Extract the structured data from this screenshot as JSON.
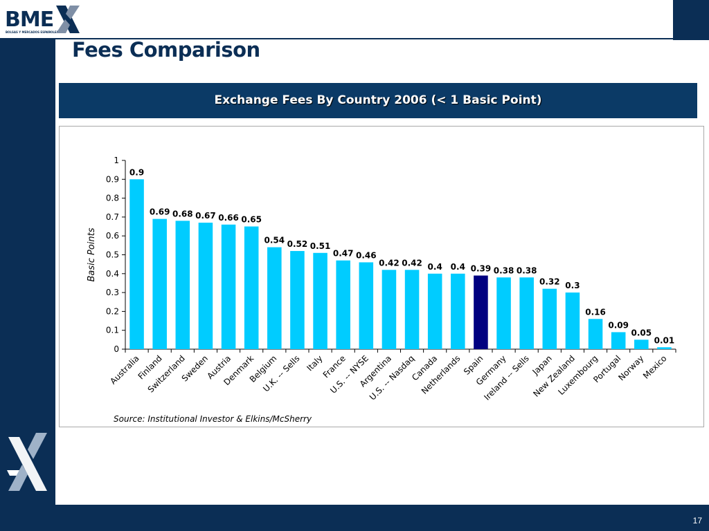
{
  "logo": {
    "wordmark": "BME",
    "tagline": "BOLSAS Y MERCADOS ESPAÑOLES"
  },
  "slide": {
    "title": "Fees Comparison",
    "page_number": "17"
  },
  "colors": {
    "navy": "#0b2e55",
    "banner": "#0b3a66",
    "bar": "#00ccff",
    "highlight_bar": "#000080"
  },
  "chart_data": {
    "type": "bar",
    "title": "Exchange Fees By Country 2006 (< 1 Basic Point)",
    "ylabel": "Basic Points",
    "xlabel": "",
    "ylim": [
      0,
      1
    ],
    "yticks": [
      "0",
      "0.1",
      "0.2",
      "0.3",
      "0.4",
      "0.5",
      "0.6",
      "0.7",
      "0.8",
      "0.9",
      "1"
    ],
    "categories": [
      "Australia",
      "Finland",
      "Switzerland",
      "Sweden",
      "Austria",
      "Denmark",
      "Belgium",
      "U.K. -- Sells",
      "Italy",
      "France",
      "U.S. -- NYSE",
      "Argentina",
      "U.S. -- Nasdaq",
      "Canada",
      "Netherlands",
      "Spain",
      "Germany",
      "Ireland -- Sells",
      "Japan",
      "New Zealand",
      "Luxembourg",
      "Portugal",
      "Norway",
      "Mexico"
    ],
    "values": [
      0.9,
      0.69,
      0.68,
      0.67,
      0.66,
      0.65,
      0.54,
      0.52,
      0.51,
      0.47,
      0.46,
      0.42,
      0.42,
      0.4,
      0.4,
      0.39,
      0.38,
      0.38,
      0.32,
      0.3,
      0.16,
      0.09,
      0.05,
      0.01
    ],
    "value_labels": [
      "0.9",
      "0.69",
      "0.68",
      "0.67",
      "0.66",
      "0.65",
      "0.54",
      "0.52",
      "0.51",
      "0.47",
      "0.46",
      "0.42",
      "0.42",
      "0.4",
      "0.4",
      "0.39",
      "0.38",
      "0.38",
      "0.32",
      "0.3",
      "0.16",
      "0.09",
      "0.05",
      "0.01"
    ],
    "highlight_category": "Spain",
    "grid": false,
    "legend": "none",
    "source": "Source: Institutional Investor & Elkins/McSherry"
  }
}
